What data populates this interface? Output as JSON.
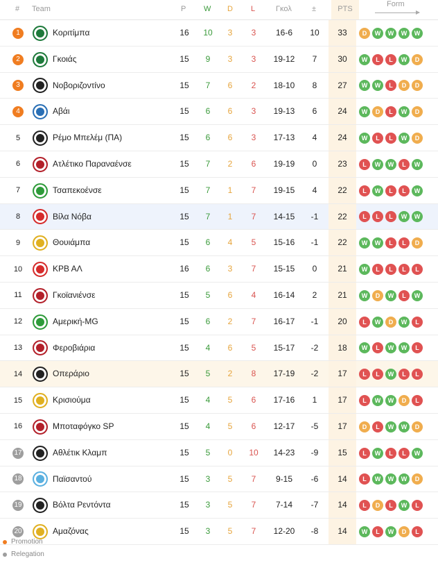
{
  "headers": {
    "rank": "#",
    "team": "Team",
    "p": "P",
    "w": "W",
    "d": "D",
    "l": "L",
    "goals": "Γκολ",
    "diff": "±",
    "pts": "PTS",
    "form": "Form"
  },
  "colors": {
    "promotion": "#f07d21",
    "relegation": "#9e9e9e",
    "win": "#5cb85c",
    "loss": "#e05252",
    "draw": "#f0ad4e"
  },
  "legend": {
    "promotion": "Promotion",
    "relegation": "Relegation"
  },
  "rows": [
    {
      "rank": "1",
      "zone": "promotion",
      "team": "Κοριτίμπα",
      "logo_color": "#1e7a3b",
      "p": "16",
      "w": "10",
      "d": "3",
      "l": "3",
      "goals": "16-6",
      "diff": "10",
      "pts": "33",
      "form": [
        "D",
        "W",
        "W",
        "W",
        "W"
      ]
    },
    {
      "rank": "2",
      "zone": "promotion",
      "team": "Γκοιάς",
      "logo_color": "#1e7a3b",
      "p": "15",
      "w": "9",
      "d": "3",
      "l": "3",
      "goals": "19-12",
      "diff": "7",
      "pts": "30",
      "form": [
        "W",
        "L",
        "L",
        "W",
        "D"
      ]
    },
    {
      "rank": "3",
      "zone": "promotion",
      "team": "Νοβοριζοντίνο",
      "logo_color": "#222222",
      "p": "15",
      "w": "7",
      "d": "6",
      "l": "2",
      "goals": "18-10",
      "diff": "8",
      "pts": "27",
      "form": [
        "W",
        "W",
        "L",
        "D",
        "D"
      ]
    },
    {
      "rank": "4",
      "zone": "promotion",
      "team": "Αβάι",
      "logo_color": "#2a6fb5",
      "p": "15",
      "w": "6",
      "d": "6",
      "l": "3",
      "goals": "19-13",
      "diff": "6",
      "pts": "24",
      "form": [
        "W",
        "D",
        "L",
        "W",
        "D"
      ]
    },
    {
      "rank": "5",
      "zone": "",
      "team": "Ρέμο Μπελέμ (ΠΑ)",
      "logo_color": "#222222",
      "p": "15",
      "w": "6",
      "d": "6",
      "l": "3",
      "goals": "17-13",
      "diff": "4",
      "pts": "24",
      "form": [
        "W",
        "L",
        "L",
        "W",
        "D"
      ]
    },
    {
      "rank": "6",
      "zone": "",
      "team": "Ατλέτικο Παραναένσε",
      "logo_color": "#b3202a",
      "p": "15",
      "w": "7",
      "d": "2",
      "l": "6",
      "goals": "19-19",
      "diff": "0",
      "pts": "23",
      "form": [
        "L",
        "W",
        "W",
        "L",
        "W"
      ]
    },
    {
      "rank": "7",
      "zone": "",
      "team": "Τσαπεκοένσε",
      "logo_color": "#2e9b3a",
      "p": "15",
      "w": "7",
      "d": "1",
      "l": "7",
      "goals": "19-15",
      "diff": "4",
      "pts": "22",
      "form": [
        "L",
        "W",
        "L",
        "L",
        "W"
      ]
    },
    {
      "rank": "8",
      "zone": "",
      "highlight": "blue",
      "team": "Βίλα Νόβα",
      "logo_color": "#d52b2b",
      "p": "15",
      "w": "7",
      "d": "1",
      "l": "7",
      "goals": "14-15",
      "diff": "-1",
      "pts": "22",
      "form": [
        "L",
        "L",
        "L",
        "W",
        "W"
      ]
    },
    {
      "rank": "9",
      "zone": "",
      "team": "Θουιάμπα",
      "logo_color": "#e0b021",
      "p": "15",
      "w": "6",
      "d": "4",
      "l": "5",
      "goals": "15-16",
      "diff": "-1",
      "pts": "22",
      "form": [
        "W",
        "W",
        "L",
        "L",
        "D"
      ]
    },
    {
      "rank": "10",
      "zone": "",
      "team": "ΚΡΒ ΑΛ",
      "logo_color": "#d52b2b",
      "p": "16",
      "w": "6",
      "d": "3",
      "l": "7",
      "goals": "15-15",
      "diff": "0",
      "pts": "21",
      "form": [
        "W",
        "L",
        "L",
        "L",
        "L"
      ]
    },
    {
      "rank": "11",
      "zone": "",
      "team": "Γκοϊανιένσε",
      "logo_color": "#b3202a",
      "p": "15",
      "w": "5",
      "d": "6",
      "l": "4",
      "goals": "16-14",
      "diff": "2",
      "pts": "21",
      "form": [
        "W",
        "D",
        "W",
        "L",
        "W"
      ]
    },
    {
      "rank": "12",
      "zone": "",
      "team": "Αμερική-MG",
      "logo_color": "#2e9b3a",
      "p": "15",
      "w": "6",
      "d": "2",
      "l": "7",
      "goals": "16-17",
      "diff": "-1",
      "pts": "20",
      "form": [
        "L",
        "W",
        "D",
        "W",
        "L"
      ]
    },
    {
      "rank": "13",
      "zone": "",
      "team": "Φεροβιάρια",
      "logo_color": "#b3202a",
      "p": "15",
      "w": "4",
      "d": "6",
      "l": "5",
      "goals": "15-17",
      "diff": "-2",
      "pts": "18",
      "form": [
        "W",
        "L",
        "W",
        "W",
        "L"
      ]
    },
    {
      "rank": "14",
      "zone": "",
      "highlight": "cream",
      "team": "Οπεράριο",
      "logo_color": "#222222",
      "p": "15",
      "w": "5",
      "d": "2",
      "l": "8",
      "goals": "17-19",
      "diff": "-2",
      "pts": "17",
      "form": [
        "L",
        "L",
        "W",
        "L",
        "L"
      ]
    },
    {
      "rank": "15",
      "zone": "",
      "team": "Κρισιούμα",
      "logo_color": "#e0b021",
      "p": "15",
      "w": "4",
      "d": "5",
      "l": "6",
      "goals": "17-16",
      "diff": "1",
      "pts": "17",
      "form": [
        "L",
        "W",
        "W",
        "D",
        "L"
      ]
    },
    {
      "rank": "16",
      "zone": "",
      "team": "Μποταφόγκο SP",
      "logo_color": "#b3202a",
      "p": "15",
      "w": "4",
      "d": "5",
      "l": "6",
      "goals": "12-17",
      "diff": "-5",
      "pts": "17",
      "form": [
        "D",
        "L",
        "W",
        "W",
        "D"
      ]
    },
    {
      "rank": "17",
      "zone": "relegation",
      "team": "Αθλέτικ Κλαμπ",
      "logo_color": "#222222",
      "p": "15",
      "w": "5",
      "d": "0",
      "l": "10",
      "goals": "14-23",
      "diff": "-9",
      "pts": "15",
      "form": [
        "L",
        "W",
        "L",
        "L",
        "W"
      ]
    },
    {
      "rank": "18",
      "zone": "relegation",
      "team": "Παϊσαντού",
      "logo_color": "#5ab0e0",
      "p": "15",
      "w": "3",
      "d": "5",
      "l": "7",
      "goals": "9-15",
      "diff": "-6",
      "pts": "14",
      "form": [
        "L",
        "W",
        "W",
        "W",
        "D"
      ]
    },
    {
      "rank": "19",
      "zone": "relegation",
      "team": "Βόλτα Ρεντόντα",
      "logo_color": "#222222",
      "p": "15",
      "w": "3",
      "d": "5",
      "l": "7",
      "goals": "7-14",
      "diff": "-7",
      "pts": "14",
      "form": [
        "L",
        "D",
        "L",
        "W",
        "L"
      ]
    },
    {
      "rank": "20",
      "zone": "relegation",
      "team": "Αμαζόνας",
      "logo_color": "#e0b021",
      "p": "15",
      "w": "3",
      "d": "5",
      "l": "7",
      "goals": "12-20",
      "diff": "-8",
      "pts": "14",
      "form": [
        "W",
        "L",
        "W",
        "D",
        "L"
      ]
    }
  ]
}
